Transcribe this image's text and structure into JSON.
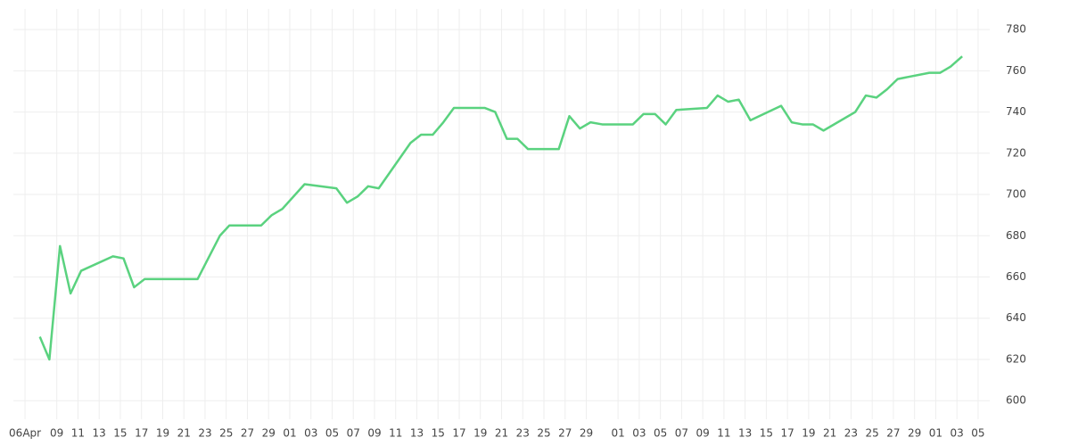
{
  "chart_data": {
    "type": "line",
    "x": [
      1.4,
      2.3,
      3.3,
      4.3,
      5.3,
      8.3,
      9.3,
      10.3,
      11.3,
      16.3,
      17.3,
      18.4,
      19.3,
      22.3,
      23.3,
      24.3,
      26.4,
      29.4,
      30.4,
      31.4,
      32.4,
      33.4,
      36.4,
      37.4,
      38.5,
      39.5,
      40.5,
      43.4,
      44.4,
      45.5,
      46.5,
      47.5,
      50.4,
      51.4,
      52.4,
      53.4,
      54.5,
      57.4,
      58.4,
      59.5,
      60.5,
      61.5,
      64.4,
      65.4,
      66.4,
      67.4,
      68.5,
      71.4,
      72.4,
      73.4,
      74.4,
      75.4,
      78.4,
      79.4,
      80.4,
      81.4,
      82.4,
      85.4,
      86.4,
      87.4,
      88.5
    ],
    "series": [
      {
        "color": "#5ad27f",
        "values": [
          631,
          620,
          675,
          652,
          663,
          670,
          669,
          655,
          659,
          659,
          669,
          680,
          685,
          685,
          690,
          693,
          705,
          703,
          696,
          699,
          704,
          703,
          725,
          729,
          729,
          735,
          742,
          742,
          740,
          727,
          727,
          722,
          722,
          738,
          732,
          735,
          734,
          734,
          739,
          739,
          734,
          741,
          742,
          748,
          745,
          746,
          736,
          743,
          735,
          734,
          734,
          731,
          740,
          748,
          747,
          751,
          756,
          759,
          759,
          762,
          767
        ]
      }
    ],
    "xlim": [
      -1.1,
      91.1
    ],
    "xticks": [
      {
        "value": 0,
        "label": "06Apr"
      },
      {
        "value": 3,
        "label": "09"
      },
      {
        "value": 5,
        "label": "11"
      },
      {
        "value": 7,
        "label": "13"
      },
      {
        "value": 9,
        "label": "15"
      },
      {
        "value": 11,
        "label": "17"
      },
      {
        "value": 13,
        "label": "19"
      },
      {
        "value": 15,
        "label": "21"
      },
      {
        "value": 17,
        "label": "23"
      },
      {
        "value": 19,
        "label": "25"
      },
      {
        "value": 21,
        "label": "27"
      },
      {
        "value": 23,
        "label": "29"
      },
      {
        "value": 25,
        "label": "01"
      },
      {
        "value": 27,
        "label": "03"
      },
      {
        "value": 29,
        "label": "05"
      },
      {
        "value": 31,
        "label": "07"
      },
      {
        "value": 33,
        "label": "09"
      },
      {
        "value": 35,
        "label": "11"
      },
      {
        "value": 37,
        "label": "13"
      },
      {
        "value": 39,
        "label": "15"
      },
      {
        "value": 41,
        "label": "17"
      },
      {
        "value": 43,
        "label": "19"
      },
      {
        "value": 45,
        "label": "21"
      },
      {
        "value": 47,
        "label": "23"
      },
      {
        "value": 49,
        "label": "25"
      },
      {
        "value": 51,
        "label": "27"
      },
      {
        "value": 53,
        "label": "29"
      },
      {
        "value": 56,
        "label": "01"
      },
      {
        "value": 58,
        "label": "03"
      },
      {
        "value": 60,
        "label": "05"
      },
      {
        "value": 62,
        "label": "07"
      },
      {
        "value": 64,
        "label": "09"
      },
      {
        "value": 66,
        "label": "11"
      },
      {
        "value": 68,
        "label": "13"
      },
      {
        "value": 70,
        "label": "15"
      },
      {
        "value": 72,
        "label": "17"
      },
      {
        "value": 74,
        "label": "19"
      },
      {
        "value": 76,
        "label": "21"
      },
      {
        "value": 78,
        "label": "23"
      },
      {
        "value": 80,
        "label": "25"
      },
      {
        "value": 82,
        "label": "27"
      },
      {
        "value": 84,
        "label": "29"
      },
      {
        "value": 86,
        "label": "01"
      },
      {
        "value": 88,
        "label": "03"
      },
      {
        "value": 90,
        "label": "05"
      }
    ],
    "ylim": [
      591,
      790
    ],
    "yticks": [
      600,
      620,
      640,
      660,
      680,
      700,
      720,
      740,
      760,
      780
    ],
    "grid": true
  }
}
